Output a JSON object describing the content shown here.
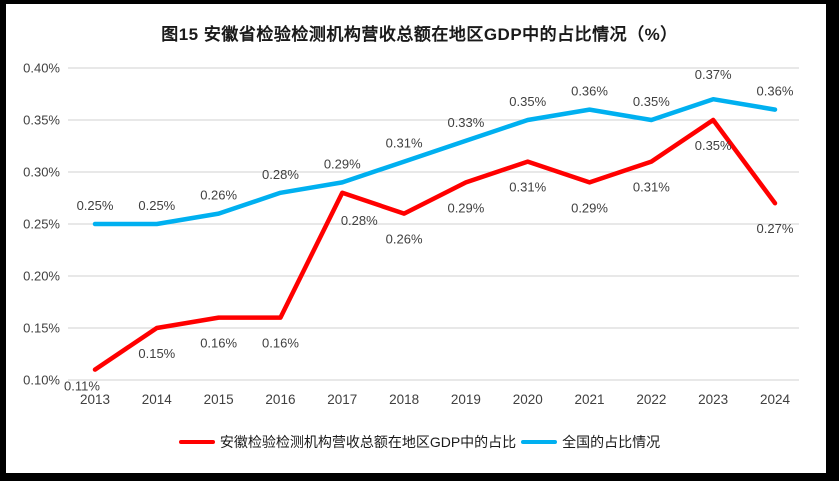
{
  "frame": {
    "border_color": "#000000",
    "background": "#ffffff"
  },
  "chart_data": {
    "type": "line",
    "title": "图15 安徽省检验检测机构营收总额在地区GDP中的占比情况（%）",
    "xlabel": "",
    "ylabel": "",
    "categories": [
      "2013",
      "2014",
      "2015",
      "2016",
      "2017",
      "2018",
      "2019",
      "2020",
      "2021",
      "2022",
      "2023",
      "2024"
    ],
    "ylim": [
      0.1,
      0.4
    ],
    "grid": "horizontal",
    "gridline_color": "#D9D9D9",
    "label_color": "#404040",
    "legend_position": "bottom",
    "y_ticks": [
      {
        "value": 0.1,
        "label": "0.10%"
      },
      {
        "value": 0.15,
        "label": "0.15%"
      },
      {
        "value": 0.2,
        "label": "0.20%"
      },
      {
        "value": 0.25,
        "label": "0.25%"
      },
      {
        "value": 0.3,
        "label": "0.30%"
      },
      {
        "value": 0.35,
        "label": "0.35%"
      },
      {
        "value": 0.4,
        "label": "0.40%"
      }
    ],
    "series": [
      {
        "name": "安徽检验检测机构营收总额在地区GDP中的占比",
        "color": "#FF0000",
        "values": [
          0.11,
          0.15,
          0.16,
          0.16,
          0.28,
          0.26,
          0.29,
          0.31,
          0.29,
          0.31,
          0.35,
          0.27
        ],
        "point_labels": [
          "0.11%",
          "0.15%",
          "0.16%",
          "0.16%",
          "0.28%",
          "0.26%",
          "0.29%",
          "0.31%",
          "0.29%",
          "0.31%",
          "0.35%",
          "0.27%"
        ],
        "label_side": "below",
        "label_offset_overrides": {
          "0": [
            -13,
            21
          ],
          "4": [
            17,
            32
          ]
        }
      },
      {
        "name": "全国的占比情况",
        "color": "#00B0F0",
        "values": [
          0.25,
          0.25,
          0.26,
          0.28,
          0.29,
          0.31,
          0.33,
          0.35,
          0.36,
          0.35,
          0.37,
          0.36
        ],
        "point_labels": [
          "0.25%",
          "0.25%",
          "0.26%",
          "0.28%",
          "0.29%",
          "0.31%",
          "0.33%",
          "0.35%",
          "0.36%",
          "0.35%",
          "0.37%",
          "0.36%"
        ],
        "label_side": "above",
        "label_offset_overrides": {
          "10": [
            0,
            -20
          ]
        }
      }
    ]
  },
  "legend": {
    "items": [
      {
        "label": "安徽检验检测机构营收总额在地区GDP中的占比",
        "color": "#FF0000"
      },
      {
        "label": "全国的占比情况",
        "color": "#00B0F0"
      }
    ]
  }
}
